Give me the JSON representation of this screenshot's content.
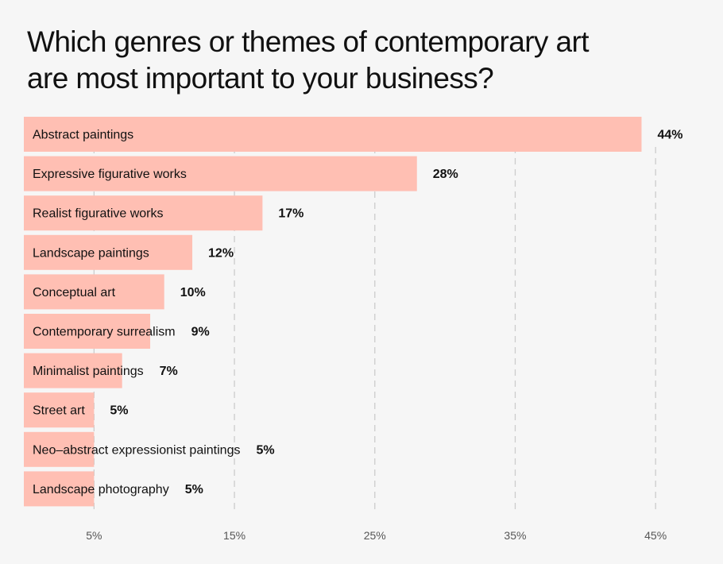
{
  "chart_data": {
    "type": "bar",
    "orientation": "horizontal",
    "title": "Which genres or themes of contemporary art are most important to your business?",
    "categories": [
      "Abstract paintings",
      "Expressive figurative works",
      "Realist figurative works",
      "Landscape paintings",
      "Conceptual art",
      "Contemporary surrealism",
      "Minimalist paintings",
      "Street art",
      "Neo–abstract expressionist paintings",
      "Landscape photography"
    ],
    "values": [
      44,
      28,
      17,
      12,
      10,
      9,
      7,
      5,
      5,
      5
    ],
    "value_labels": [
      "44%",
      "28%",
      "17%",
      "12%",
      "10%",
      "9%",
      "7%",
      "5%",
      "5%",
      "5%"
    ],
    "xticks": [
      5,
      15,
      25,
      35,
      45
    ],
    "xtick_labels": [
      "5%",
      "15%",
      "25%",
      "35%",
      "45%"
    ],
    "xlim": [
      0,
      45
    ],
    "grid": true,
    "bar_color": "#ffbfb3",
    "grid_color": "#cccccc"
  }
}
